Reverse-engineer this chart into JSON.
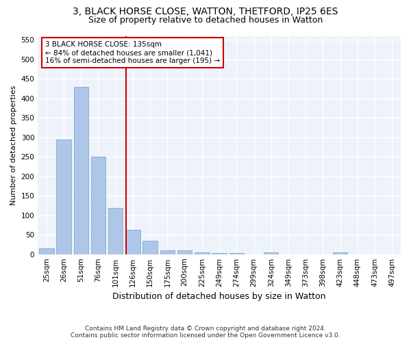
{
  "title1": "3, BLACK HORSE CLOSE, WATTON, THETFORD, IP25 6ES",
  "title2": "Size of property relative to detached houses in Watton",
  "xlabel": "Distribution of detached houses by size in Watton",
  "ylabel": "Number of detached properties",
  "bar_labels": [
    "25sqm",
    "26sqm",
    "51sqm",
    "76sqm",
    "101sqm",
    "126sqm",
    "150sqm",
    "175sqm",
    "200sqm",
    "225sqm",
    "249sqm",
    "274sqm",
    "299sqm",
    "324sqm",
    "349sqm",
    "373sqm",
    "398sqm",
    "423sqm",
    "448sqm",
    "473sqm",
    "497sqm"
  ],
  "bar_heights": [
    15,
    295,
    430,
    250,
    118,
    63,
    35,
    10,
    10,
    5,
    3,
    3,
    0,
    5,
    0,
    0,
    0,
    5,
    0,
    0,
    0
  ],
  "bar_color": "#aec6e8",
  "bar_edgecolor": "#7eaad1",
  "reference_line_label": "3 BLACK HORSE CLOSE: 135sqm",
  "annotation_line1": "← 84% of detached houses are smaller (1,041)",
  "annotation_line2": "16% of semi-detached houses are larger (195) →",
  "annotation_box_color": "#ffffff",
  "annotation_box_edgecolor": "#cc0000",
  "vline_color": "#cc0000",
  "vline_x": 4.6,
  "ylim": [
    0,
    560
  ],
  "yticks": [
    0,
    50,
    100,
    150,
    200,
    250,
    300,
    350,
    400,
    450,
    500,
    550
  ],
  "footer1": "Contains HM Land Registry data © Crown copyright and database right 2024.",
  "footer2": "Contains public sector information licensed under the Open Government Licence v3.0.",
  "bg_color": "#eef2fa",
  "grid_color": "#ffffff",
  "title1_fontsize": 10,
  "title2_fontsize": 9,
  "ylabel_fontsize": 8,
  "xlabel_fontsize": 9,
  "tick_fontsize": 7.5,
  "footer_fontsize": 6.5
}
